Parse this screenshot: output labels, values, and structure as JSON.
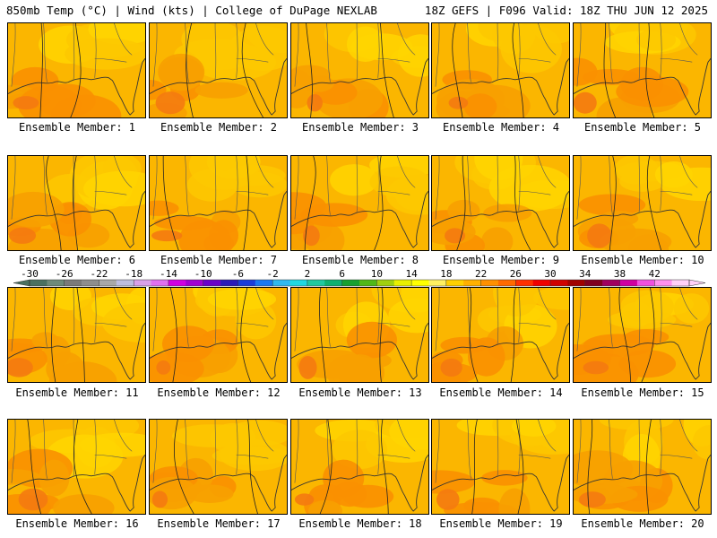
{
  "header": {
    "left": "850mb Temp (°C) | Wind (kts) | College of DuPage NEXLAB",
    "right": "18Z GEFS | F096 Valid: 18Z THU JUN 12 2025"
  },
  "panels": [
    {
      "label": "Ensemble Member: 1"
    },
    {
      "label": "Ensemble Member: 2"
    },
    {
      "label": "Ensemble Member: 3"
    },
    {
      "label": "Ensemble Member: 4"
    },
    {
      "label": "Ensemble Member: 5"
    },
    {
      "label": "Ensemble Member: 6"
    },
    {
      "label": "Ensemble Member: 7"
    },
    {
      "label": "Ensemble Member: 8"
    },
    {
      "label": "Ensemble Member: 9"
    },
    {
      "label": "Ensemble Member: 10"
    },
    {
      "label": "Ensemble Member: 11"
    },
    {
      "label": "Ensemble Member: 12"
    },
    {
      "label": "Ensemble Member: 13"
    },
    {
      "label": "Ensemble Member: 14"
    },
    {
      "label": "Ensemble Member: 15"
    },
    {
      "label": "Ensemble Member: 16"
    },
    {
      "label": "Ensemble Member: 17"
    },
    {
      "label": "Ensemble Member: 18"
    },
    {
      "label": "Ensemble Member: 19"
    },
    {
      "label": "Ensemble Member: 20"
    }
  ],
  "colorbar": {
    "tick_labels": [
      "-30",
      "-26",
      "-22",
      "-18",
      "-14",
      "-10",
      "-6",
      "-2",
      "2",
      "6",
      "10",
      "14",
      "18",
      "22",
      "26",
      "30",
      "34",
      "38",
      "42"
    ],
    "colors": [
      "#4a7060",
      "#6e8a7a",
      "#7a7a7a",
      "#8e8e8e",
      "#a8a8a8",
      "#bdbde0",
      "#d8a0e8",
      "#e070f0",
      "#d000e0",
      "#a000d0",
      "#6a00c8",
      "#2a1ab8",
      "#1a3cd8",
      "#1a78f0",
      "#30b8f0",
      "#20d8e0",
      "#20c8a0",
      "#10b070",
      "#18a030",
      "#50b818",
      "#a0d010",
      "#e8f000",
      "#ffff00",
      "#fff060",
      "#ffd000",
      "#ffb000",
      "#ff9000",
      "#ff6a00",
      "#ff3000",
      "#f00000",
      "#d00000",
      "#a00000",
      "#800020",
      "#a00060",
      "#d000a0",
      "#f050e0",
      "#ff90f0",
      "#ffd0f8"
    ]
  }
}
